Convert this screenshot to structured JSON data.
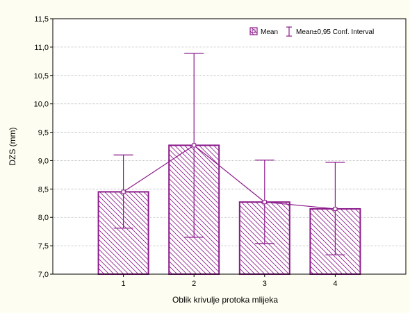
{
  "chart_data": {
    "type": "bar",
    "title": "",
    "xlabel": "Oblik krivulje protoka mlijeka",
    "ylabel": "DZS (mm)",
    "ylim": [
      7.0,
      11.5
    ],
    "categories": [
      "1",
      "2",
      "3",
      "4"
    ],
    "y_ticks": [
      "7,0",
      "7,5",
      "8,0",
      "8,5",
      "9,0",
      "9,5",
      "10,0",
      "10,5",
      "11,0",
      "11,5"
    ],
    "y_tick_values": [
      7.0,
      7.5,
      8.0,
      8.5,
      9.0,
      9.5,
      10.0,
      10.5,
      11.0,
      11.5
    ],
    "series": [
      {
        "name": "Mean",
        "values": [
          8.45,
          9.27,
          8.27,
          8.15
        ],
        "ci_lower": [
          7.81,
          7.65,
          7.54,
          7.34
        ],
        "ci_upper": [
          9.1,
          10.89,
          9.01,
          8.97
        ]
      }
    ],
    "legend": {
      "position": "top-right",
      "mean_label": "Mean",
      "ci_label": "Mean±0,95 Conf. Interval"
    },
    "grid": true,
    "colors": {
      "mark": "#8b1a8b",
      "background": "#fdfdf1",
      "plot": "#ffffff",
      "grid": "#b4b4b4"
    }
  }
}
